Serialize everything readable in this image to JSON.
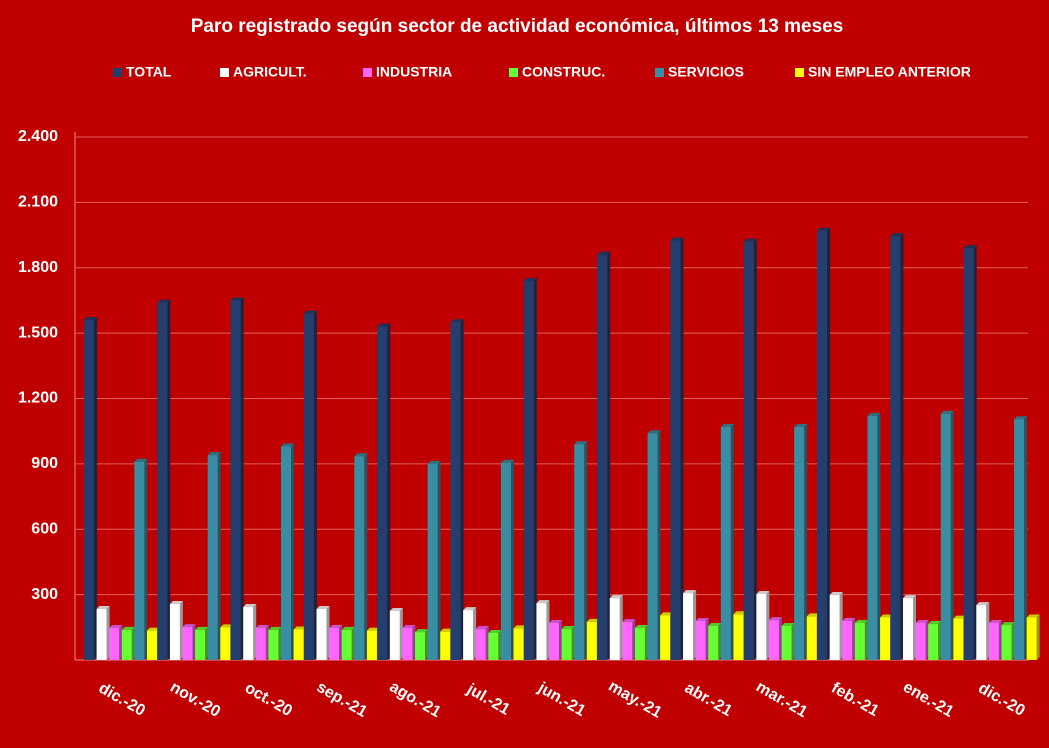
{
  "chart_data": {
    "type": "bar",
    "title": "Paro registrado según sector de actividad económica, últimos 13 meses",
    "categories": [
      "dic.-20",
      "nov.-20",
      "oct.-20",
      "sep.-21",
      "ago.-21",
      "jul.-21",
      "jun.-21",
      "may.-21",
      "abr.-21",
      "mar.-21",
      "feb.-21",
      "ene.-21",
      "dic.-20"
    ],
    "series": [
      {
        "name": "TOTAL",
        "color": "#243f6e",
        "values": [
          1560,
          1640,
          1650,
          1590,
          1530,
          1550,
          1740,
          1860,
          1925,
          1920,
          1970,
          1945,
          1890
        ]
      },
      {
        "name": "AGRICULT.",
        "color": "#ffffff",
        "values": [
          234,
          257,
          243,
          234,
          225,
          229,
          261,
          284,
          307,
          303,
          298,
          284,
          252
        ]
      },
      {
        "name": "INDUSTRIA",
        "color": "#ff66ff",
        "values": [
          147,
          151,
          147,
          147,
          147,
          142,
          170,
          174,
          179,
          183,
          179,
          170,
          170
        ]
      },
      {
        "name": "CONSTRUC.",
        "color": "#66ff33",
        "values": [
          138,
          138,
          138,
          138,
          128,
          124,
          142,
          147,
          156,
          156,
          170,
          165,
          160
        ]
      },
      {
        "name": "SERVICIOS",
        "color": "#3a8ea3",
        "values": [
          910,
          940,
          980,
          935,
          900,
          905,
          990,
          1040,
          1070,
          1070,
          1120,
          1130,
          1105
        ]
      },
      {
        "name": "SIN EMPLEO ANTERIOR",
        "color": "#ffff00",
        "values": [
          135,
          150,
          140,
          135,
          130,
          145,
          175,
          205,
          210,
          200,
          195,
          190,
          195
        ]
      }
    ],
    "ylim": [
      0,
      2400
    ],
    "yticks": [
      300,
      600,
      900,
      {
        "value": 1200,
        "label": "1.200"
      },
      {
        "value": 1500,
        "label": "1.500"
      },
      {
        "value": 1800,
        "label": "1.800"
      },
      {
        "value": 2100,
        "label": "2.100"
      },
      {
        "value": 2400,
        "label": "2.400"
      }
    ],
    "grid": true,
    "legend": "top"
  }
}
